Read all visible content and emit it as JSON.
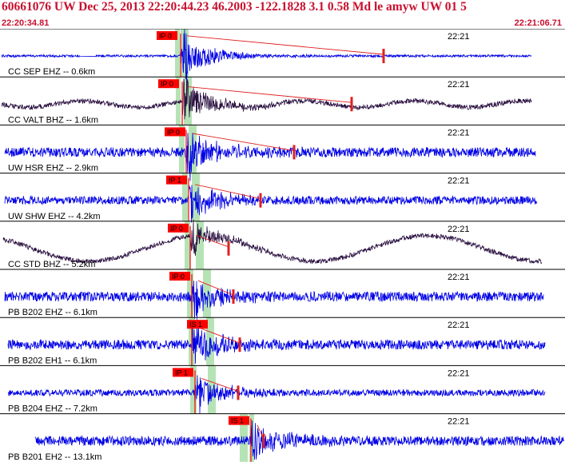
{
  "header": {
    "title": "60661076 UW Dec 25, 2013 22:20:44.23   46.2003 -122.1828  3.1 0.58 Md le amyw UW 01   5",
    "start_time": "22:20:34.81",
    "end_time": "22:21:06.71"
  },
  "colors": {
    "title": "#c8102e",
    "trace_blue": "#0000e6",
    "trace_dark": "#2a1040",
    "pick_box": "#ff0000",
    "overlay_green": "#9ed99e",
    "envelope_red": "#e02020",
    "divider": "#000000"
  },
  "minute_label": "22:21",
  "traces": [
    {
      "label": "CC SEP EHZ -- 0.6km",
      "pick": "IP 0",
      "color": "trace_blue"
    },
    {
      "label": "CC VALT BHZ -- 1.6km",
      "pick": "IP 0",
      "color": "trace_dark"
    },
    {
      "label": "UW HSR EHZ -- 2.9km",
      "pick": "IP 0",
      "color": "trace_blue"
    },
    {
      "label": "UW SHW EHZ -- 4.2km",
      "pick": "IP 1",
      "color": "trace_blue"
    },
    {
      "label": "CC STD BHZ -- 5.2km",
      "pick": "IP 0",
      "color": "trace_dark"
    },
    {
      "label": "PB B202 EHZ -- 6.1km",
      "pick": "IP 0",
      "color": "trace_blue"
    },
    {
      "label": "PB B202 EH1 -- 6.1km",
      "pick": "IS 1",
      "color": "trace_blue"
    },
    {
      "label": "PB B204 EHZ -- 7.2km",
      "pick": "IP 1",
      "color": "trace_blue"
    },
    {
      "label": "PB B201 EH2 -- 13.1km",
      "pick": "IS 1",
      "color": "trace_blue"
    }
  ]
}
